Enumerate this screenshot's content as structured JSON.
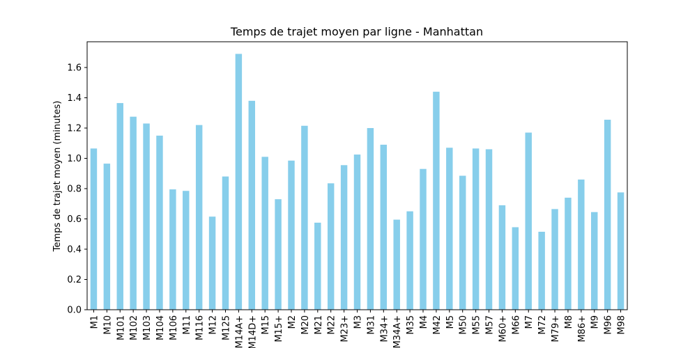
{
  "chart_data": {
    "type": "bar",
    "title": "Temps de trajet moyen par ligne - Manhattan",
    "xlabel": "",
    "ylabel": "Temps de trajet moyen (minutes)",
    "ylim": [
      0,
      1.77
    ],
    "yticks": [
      0.0,
      0.2,
      0.4,
      0.6,
      0.8,
      1.0,
      1.2,
      1.4,
      1.6
    ],
    "ytick_labels": [
      "0.0",
      "0.2",
      "0.4",
      "0.6",
      "0.8",
      "1.0",
      "1.2",
      "1.4",
      "1.6"
    ],
    "bar_color": "#87ceeb",
    "grid": false,
    "legend": "none",
    "categories": [
      "M1",
      "M10",
      "M101",
      "M102",
      "M103",
      "M104",
      "M106",
      "M11",
      "M116",
      "M12",
      "M125",
      "M14A+",
      "M14D+",
      "M15",
      "M15+",
      "M2",
      "M20",
      "M21",
      "M22",
      "M23+",
      "M3",
      "M31",
      "M34+",
      "M34A+",
      "M35",
      "M4",
      "M42",
      "M5",
      "M50",
      "M55",
      "M57",
      "M60+",
      "M66",
      "M7",
      "M72",
      "M79+",
      "M8",
      "M86+",
      "M9",
      "M96",
      "M98"
    ],
    "values": [
      1.065,
      0.965,
      1.365,
      1.275,
      1.23,
      1.15,
      0.795,
      0.785,
      1.22,
      0.615,
      0.88,
      1.69,
      1.38,
      1.01,
      0.73,
      0.985,
      1.215,
      0.575,
      0.835,
      0.955,
      1.025,
      1.2,
      1.09,
      0.595,
      0.65,
      0.93,
      1.44,
      1.07,
      0.885,
      1.065,
      1.06,
      0.69,
      0.545,
      1.17,
      0.515,
      0.665,
      0.74,
      0.86,
      0.645,
      1.255,
      0.775
    ]
  }
}
